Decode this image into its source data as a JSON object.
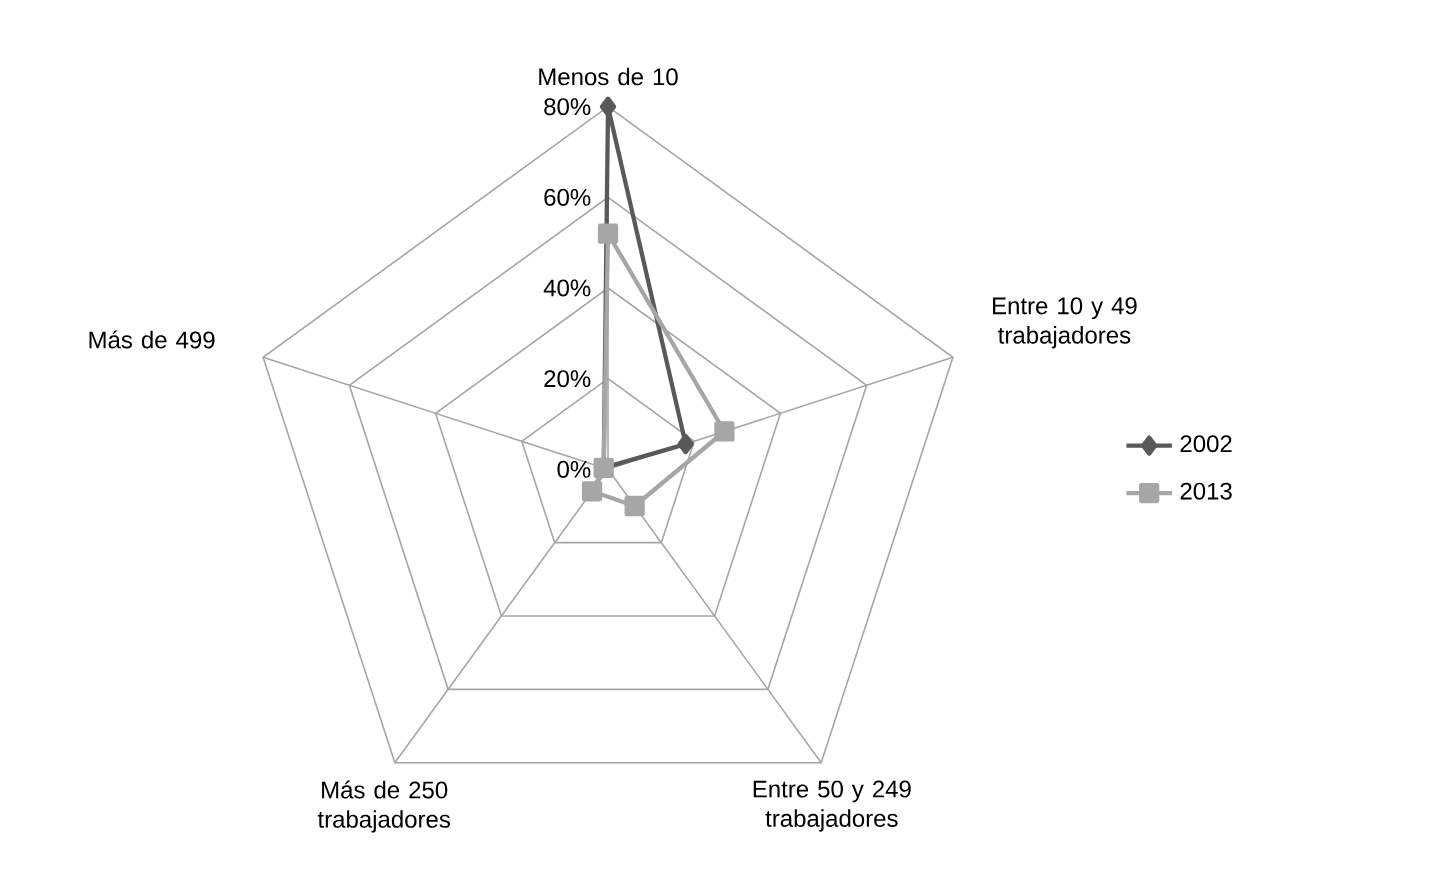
{
  "chart_data": {
    "type": "radar",
    "categories": [
      "Menos de 10",
      "Entre 10 y 49 trabajadores",
      "Entre 50 y 249 trabajadores",
      "Más de 250 trabajadores",
      "Más de 499"
    ],
    "ylim": [
      0,
      80
    ],
    "yticks": [
      {
        "value": 0,
        "label": "0%"
      },
      {
        "value": 20,
        "label": "20%"
      },
      {
        "value": 40,
        "label": "40%"
      },
      {
        "value": 60,
        "label": "60%"
      },
      {
        "value": 80,
        "label": "80%"
      }
    ],
    "grid": true,
    "legend": "right",
    "line_style": "solid",
    "series": [
      {
        "name": "2002",
        "color": "#595959",
        "marker": "diamond",
        "values": [
          80,
          18,
          null,
          null,
          1
        ]
      },
      {
        "name": "2013",
        "color": "#a6a6a6",
        "marker": "square",
        "values": [
          52,
          27,
          10,
          6,
          1
        ]
      }
    ]
  }
}
